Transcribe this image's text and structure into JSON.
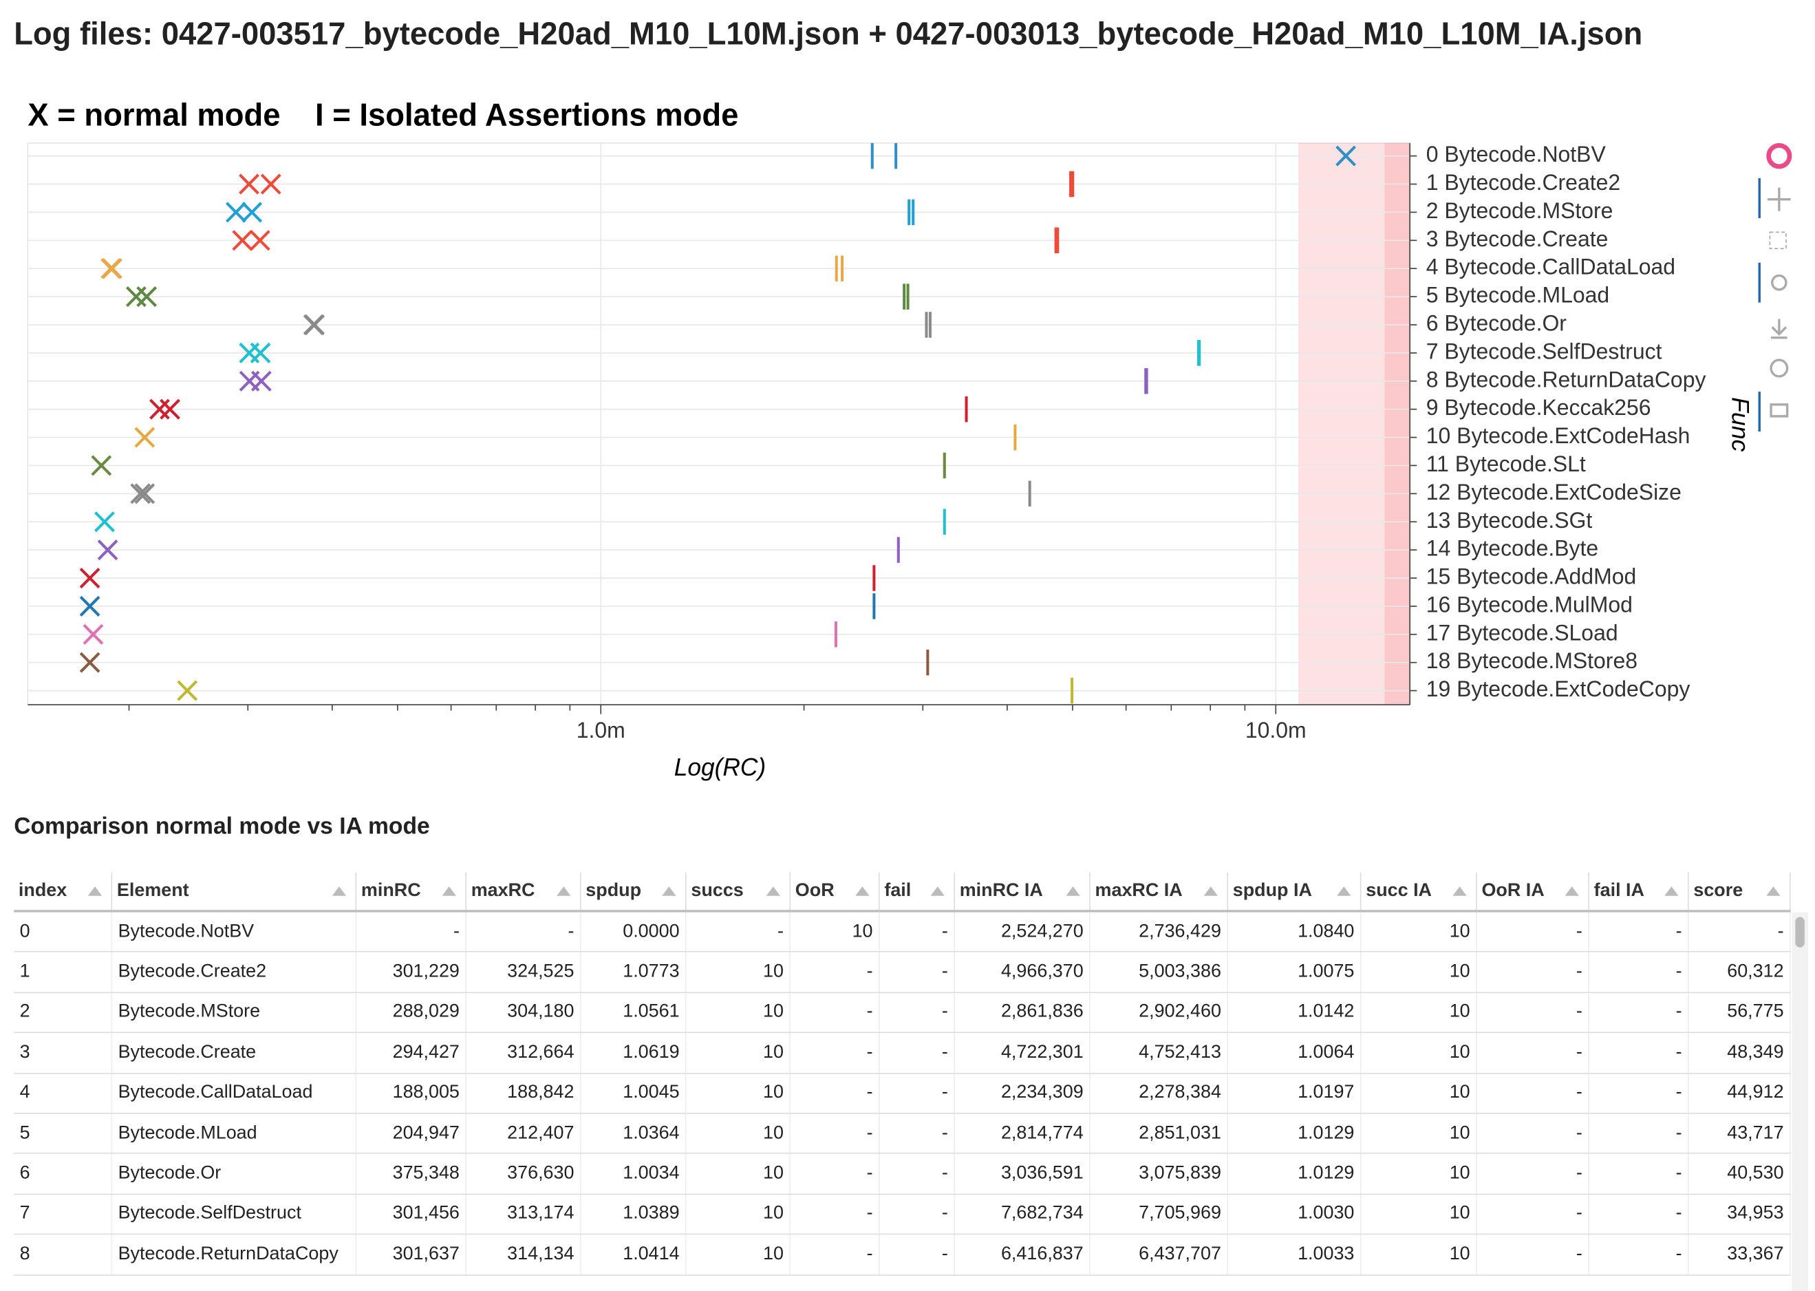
{
  "header": {
    "title": "Log files: 0427-003517_bytecode_H20ad_M10_L10M.json + 0427-003013_bytecode_H20ad_M10_L10M_IA.json"
  },
  "chart_data": {
    "type": "scatter",
    "title": "X = normal mode    I = Isolated Assertions mode",
    "x_label": "Log(RC)",
    "y_label": "Func",
    "log_x": true,
    "grid": true,
    "categories": [
      "0 Bytecode.NotBV",
      "1 Bytecode.Create2",
      "2 Bytecode.MStore",
      "3 Bytecode.Create",
      "4 Bytecode.CallDataLoad",
      "5 Bytecode.MLoad",
      "6 Bytecode.Or",
      "7 Bytecode.SelfDestruct",
      "8 Bytecode.ReturnDataCopy",
      "9 Bytecode.Keccak256",
      "10 Bytecode.ExtCodeHash",
      "11 Bytecode.SLt",
      "12 Bytecode.ExtCodeSize",
      "13 Bytecode.SGt",
      "14 Bytecode.Byte",
      "15 Bytecode.AddMod",
      "16 Bytecode.MulMod",
      "17 Bytecode.SLoad",
      "18 Bytecode.MStore8",
      "19 Bytecode.ExtCodeCopy"
    ],
    "colors": [
      "#2f8fc8",
      "#ee4a3a",
      "#1fa0d8",
      "#f04a3a",
      "#e8a84a",
      "#5c8a40",
      "#8a8a8a",
      "#20c0d0",
      "#9060c0",
      "#d0202e",
      "#e8a840",
      "#6a8a40",
      "#8a8a8a",
      "#20c0d0",
      "#9060c0",
      "#d0202e",
      "#1f77b4",
      "#e070b0",
      "#8b5a40",
      "#c0b830"
    ],
    "normal_values": [
      [
        12700000
      ],
      [
        301229,
        324525
      ],
      [
        288029,
        304180
      ],
      [
        294427,
        312664
      ],
      [
        188005,
        188842
      ],
      [
        204947,
        212407
      ],
      [
        375348,
        376630
      ],
      [
        301456,
        313174
      ],
      [
        301637,
        314134
      ],
      [
        222000,
        230000
      ],
      [
        211000
      ],
      [
        182000
      ],
      [
        208000,
        211000
      ],
      [
        184000
      ],
      [
        186000
      ],
      [
        175000
      ],
      [
        175000
      ],
      [
        177000
      ],
      [
        175000
      ],
      [
        244000
      ]
    ],
    "ia_values": [
      [
        2524270,
        2736429
      ],
      [
        4966370,
        5003386
      ],
      [
        2861836,
        2902460
      ],
      [
        4722301,
        4752413
      ],
      [
        2234309,
        2278384
      ],
      [
        2814774,
        2851031
      ],
      [
        3036591,
        3075839
      ],
      [
        7682734,
        7705969
      ],
      [
        6416837,
        6437707
      ],
      [
        3480000
      ],
      [
        4110000
      ],
      [
        3230000
      ],
      [
        4320000
      ],
      [
        3230000
      ],
      [
        2760000
      ],
      [
        2540000
      ],
      [
        2540000
      ],
      [
        2230000
      ],
      [
        3050000
      ],
      [
        4990000
      ]
    ],
    "shade_ranges": [
      [
        10800000,
        15800000
      ],
      [
        14500000,
        15800000
      ]
    ],
    "xlim": [
      141600,
      15800000
    ],
    "xticks": [
      {
        "value": 1000000,
        "label": "1.0m"
      },
      {
        "value": 10000000,
        "label": "10.0m"
      }
    ],
    "xminor_ticks": [
      200000,
      300000,
      400000,
      500000,
      600000,
      700000,
      800000,
      900000,
      2000000,
      3000000,
      4000000,
      5000000,
      6000000,
      7000000,
      8000000,
      9000000
    ]
  },
  "table": {
    "title": "Comparison normal mode vs IA mode",
    "columns": [
      "index",
      "Element",
      "minRC",
      "maxRC",
      "spdup",
      "succs",
      "OoR",
      "fail",
      "minRC IA",
      "maxRC IA",
      "spdup IA",
      "succ IA",
      "OoR IA",
      "fail IA",
      "score"
    ],
    "rows": [
      [
        "0",
        "Bytecode.NotBV",
        "-",
        "-",
        "0.0000",
        "-",
        "10",
        "-",
        "2,524,270",
        "2,736,429",
        "1.0840",
        "10",
        "-",
        "-",
        "-"
      ],
      [
        "1",
        "Bytecode.Create2",
        "301,229",
        "324,525",
        "1.0773",
        "10",
        "-",
        "-",
        "4,966,370",
        "5,003,386",
        "1.0075",
        "10",
        "-",
        "-",
        "60,312"
      ],
      [
        "2",
        "Bytecode.MStore",
        "288,029",
        "304,180",
        "1.0561",
        "10",
        "-",
        "-",
        "2,861,836",
        "2,902,460",
        "1.0142",
        "10",
        "-",
        "-",
        "56,775"
      ],
      [
        "3",
        "Bytecode.Create",
        "294,427",
        "312,664",
        "1.0619",
        "10",
        "-",
        "-",
        "4,722,301",
        "4,752,413",
        "1.0064",
        "10",
        "-",
        "-",
        "48,349"
      ],
      [
        "4",
        "Bytecode.CallDataLoad",
        "188,005",
        "188,842",
        "1.0045",
        "10",
        "-",
        "-",
        "2,234,309",
        "2,278,384",
        "1.0197",
        "10",
        "-",
        "-",
        "44,912"
      ],
      [
        "5",
        "Bytecode.MLoad",
        "204,947",
        "212,407",
        "1.0364",
        "10",
        "-",
        "-",
        "2,814,774",
        "2,851,031",
        "1.0129",
        "10",
        "-",
        "-",
        "43,717"
      ],
      [
        "6",
        "Bytecode.Or",
        "375,348",
        "376,630",
        "1.0034",
        "10",
        "-",
        "-",
        "3,036,591",
        "3,075,839",
        "1.0129",
        "10",
        "-",
        "-",
        "40,530"
      ],
      [
        "7",
        "Bytecode.SelfDestruct",
        "301,456",
        "313,174",
        "1.0389",
        "10",
        "-",
        "-",
        "7,682,734",
        "7,705,969",
        "1.0030",
        "10",
        "-",
        "-",
        "34,953"
      ],
      [
        "8",
        "Bytecode.ReturnDataCopy",
        "301,637",
        "314,134",
        "1.0414",
        "10",
        "-",
        "-",
        "6,416,837",
        "6,437,707",
        "1.0033",
        "10",
        "-",
        "-",
        "33,367"
      ]
    ]
  }
}
